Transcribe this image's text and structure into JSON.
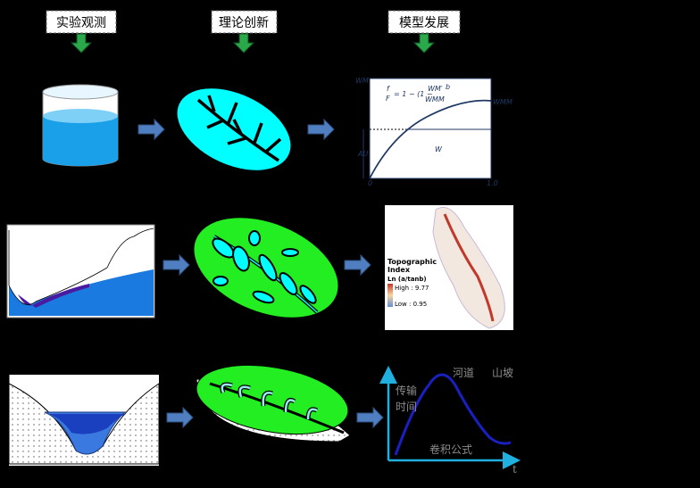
{
  "headers": [
    "实验观测",
    "理论创新",
    "模型发展"
  ],
  "storage_curve": {
    "y_top": "WM",
    "formula": {
      "num": "f",
      "den": "F",
      "mid": "= 1 − (1 −",
      "wm_prime": "WM′",
      "wmm_den": "WMM",
      "exp": "b"
    },
    "curve_label": "WMM",
    "au": "AU",
    "w": "W",
    "x_start": "0",
    "x_end": "1.0"
  },
  "topo_map": {
    "title_line1": "Topographic",
    "title_line2": "Index",
    "unit": "Ln (a/tanb)",
    "high": "High : 9.77",
    "low": "Low : 0.95"
  },
  "unit_hydrograph": {
    "channel": "河道",
    "hillslope": "山坡",
    "y_label_1": "传输",
    "y_label_2": "时间",
    "formula_label": "卷积公式",
    "x_label": "t"
  }
}
